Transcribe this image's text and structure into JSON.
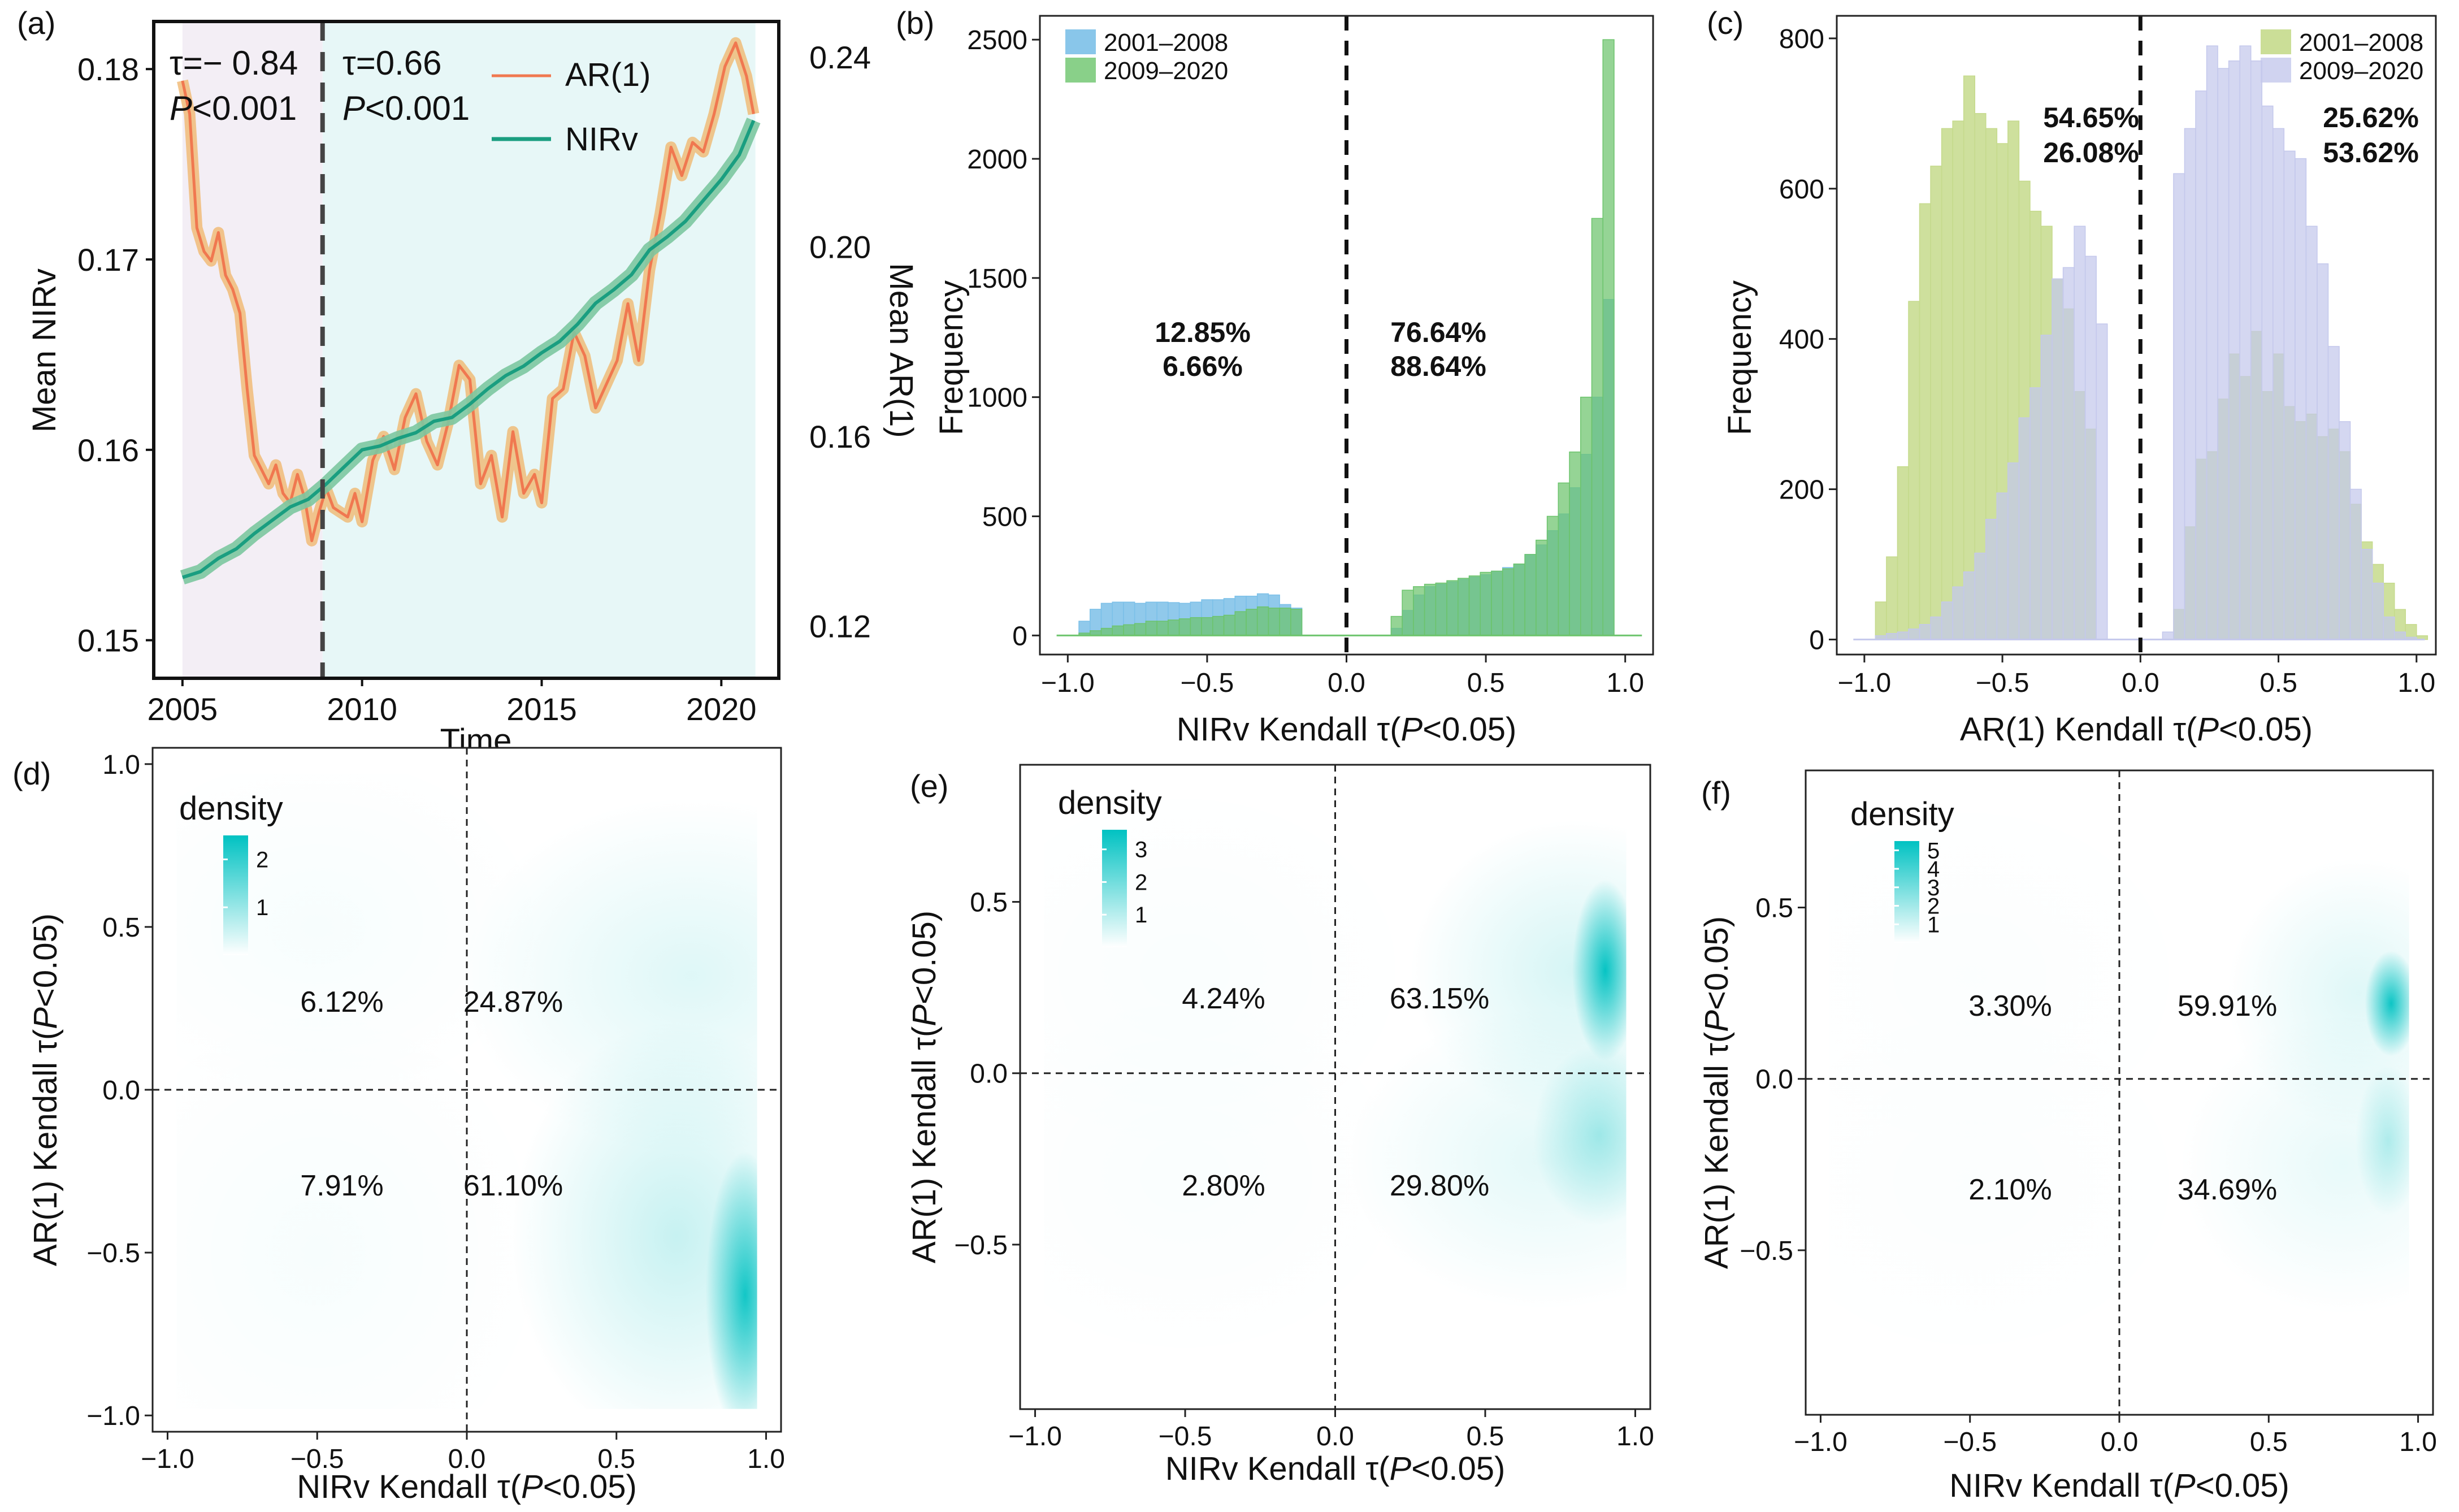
{
  "figure": {
    "colors": {
      "nirv": "#1a9e80",
      "nirv_band": "#7cc7a0",
      "ar1": "#f07850",
      "ar1_band": "#f0b870",
      "shade_early": "#f3eef5",
      "shade_late": "#e7f7f7",
      "blue": "#7cc0e8",
      "green": "#6cc46c",
      "lime": "#c5da8c",
      "lavender": "#c4c8ec",
      "teal": "#00c2c2",
      "pct_blue": "#7cc0e8",
      "pct_green": "#7ec470",
      "pct_lime": "#bdd889",
      "pct_lav": "#c4c8ec"
    }
  },
  "chart_data": [
    {
      "id": "a",
      "panel_label": "(a)",
      "type": "line",
      "xlabel": "Time",
      "ylabel_left": "Mean NIRv",
      "ylabel_right": "Mean AR(1)",
      "xlim": [
        2004.2,
        2021.6
      ],
      "ylim_left": [
        0.148,
        0.1825
      ],
      "ylim_right": [
        0.109,
        0.2475
      ],
      "x_ticks": [
        2005,
        2010,
        2015,
        2020
      ],
      "x_tick_labels": [
        "2005",
        "2010",
        "2015",
        "2020"
      ],
      "y_left_ticks": [
        0.15,
        0.16,
        0.17,
        0.18
      ],
      "y_left_tick_labels": [
        "0.15",
        "0.16",
        "0.17",
        "0.18"
      ],
      "y_right_ticks": [
        0.12,
        0.16,
        0.2,
        0.24
      ],
      "y_right_tick_labels": [
        "0.12",
        "0.16",
        "0.20",
        "0.24"
      ],
      "breakpoint": 2008.9,
      "shade_ranges": [
        [
          2005,
          2008.9
        ],
        [
          2008.9,
          2020.95
        ]
      ],
      "annotations": [
        {
          "tau": "τ=− 0.84",
          "p_italic": "P",
          "p_rest": "<0.001"
        },
        {
          "tau": "τ=0.66",
          "p_italic": "P",
          "p_rest": "<0.001"
        }
      ],
      "legend": [
        {
          "name": "AR(1)"
        },
        {
          "name": "NIRv"
        }
      ],
      "series": [
        {
          "name": "NIRv",
          "axis": "left",
          "x": [
            2005.0,
            2005.5,
            2006.0,
            2006.5,
            2007.0,
            2007.5,
            2008.0,
            2008.5,
            2009.0,
            2009.5,
            2010.0,
            2010.5,
            2011.0,
            2011.5,
            2012.0,
            2012.5,
            2013.0,
            2013.5,
            2014.0,
            2014.5,
            2015.0,
            2015.5,
            2016.0,
            2016.5,
            2017.0,
            2017.5,
            2018.0,
            2018.5,
            2019.0,
            2019.5,
            2020.0,
            2020.5,
            2020.9
          ],
          "y": [
            0.1533,
            0.1536,
            0.1543,
            0.1548,
            0.1556,
            0.1563,
            0.157,
            0.1574,
            0.1582,
            0.1591,
            0.16,
            0.1602,
            0.1606,
            0.1609,
            0.1615,
            0.1617,
            0.1624,
            0.1632,
            0.1639,
            0.1644,
            0.1651,
            0.1657,
            0.1666,
            0.1677,
            0.1684,
            0.1692,
            0.1705,
            0.1712,
            0.172,
            0.1731,
            0.1742,
            0.1755,
            0.1773
          ]
        },
        {
          "name": "AR(1)",
          "axis": "right",
          "x": [
            2005.0,
            2005.2,
            2005.4,
            2005.6,
            2005.8,
            2006.0,
            2006.2,
            2006.4,
            2006.6,
            2006.8,
            2007.0,
            2007.2,
            2007.4,
            2007.6,
            2007.8,
            2008.0,
            2008.2,
            2008.4,
            2008.6,
            2008.8,
            2009.0,
            2009.2,
            2009.4,
            2009.6,
            2009.8,
            2010.0,
            2010.3,
            2010.6,
            2010.9,
            2011.2,
            2011.5,
            2011.8,
            2012.1,
            2012.4,
            2012.7,
            2013.0,
            2013.3,
            2013.6,
            2013.9,
            2014.2,
            2014.5,
            2014.8,
            2015.0,
            2015.3,
            2015.6,
            2015.9,
            2016.2,
            2016.5,
            2016.8,
            2017.1,
            2017.4,
            2017.7,
            2018.0,
            2018.3,
            2018.6,
            2018.9,
            2019.2,
            2019.5,
            2019.8,
            2020.1,
            2020.4,
            2020.7,
            2020.9
          ],
          "y": [
            0.235,
            0.228,
            0.204,
            0.199,
            0.197,
            0.203,
            0.194,
            0.191,
            0.186,
            0.17,
            0.156,
            0.153,
            0.15,
            0.154,
            0.148,
            0.146,
            0.152,
            0.147,
            0.138,
            0.144,
            0.149,
            0.145,
            0.144,
            0.143,
            0.148,
            0.142,
            0.155,
            0.16,
            0.153,
            0.164,
            0.169,
            0.159,
            0.154,
            0.163,
            0.175,
            0.172,
            0.15,
            0.156,
            0.143,
            0.161,
            0.148,
            0.152,
            0.146,
            0.168,
            0.17,
            0.182,
            0.177,
            0.166,
            0.171,
            0.176,
            0.188,
            0.176,
            0.195,
            0.207,
            0.221,
            0.215,
            0.222,
            0.22,
            0.228,
            0.238,
            0.243,
            0.236,
            0.228
          ]
        }
      ]
    },
    {
      "id": "b",
      "panel_label": "(b)",
      "type": "bar",
      "subtype": "histogram",
      "xlabel_prefix": "NIRv Kendall τ(",
      "xlabel_italic": "P",
      "xlabel_suffix": "<0.05)",
      "ylabel": "Frequency",
      "xlim": [
        -1.1,
        1.1
      ],
      "ylim": [
        -80,
        2600
      ],
      "x_ticks": [
        -1.0,
        -0.5,
        0.0,
        0.5,
        1.0
      ],
      "x_tick_labels": [
        "−1.0",
        "−0.5",
        "0.0",
        "0.5",
        "1.0"
      ],
      "y_ticks": [
        0,
        500,
        1000,
        1500,
        2000,
        2500
      ],
      "y_tick_labels": [
        "0",
        "500",
        "1000",
        "1500",
        "2000",
        "2500"
      ],
      "bin_start": -1.0,
      "bin_width": 0.04,
      "legend": [
        "2001–2008",
        "2009–2020"
      ],
      "pct_left": [
        "12.85%",
        "6.66%"
      ],
      "pct_right": [
        "76.64%",
        "88.64%"
      ],
      "series": [
        {
          "name": "2001–2008",
          "values": [
            0,
            60,
            110,
            135,
            140,
            140,
            135,
            140,
            140,
            138,
            135,
            140,
            150,
            150,
            155,
            165,
            165,
            175,
            170,
            130,
            115,
            0,
            0,
            0,
            0,
            0,
            0,
            0,
            0,
            30,
            105,
            170,
            205,
            215,
            225,
            235,
            245,
            255,
            270,
            285,
            300,
            340,
            380,
            440,
            510,
            620,
            760,
            1000,
            1410,
            0
          ]
        },
        {
          "name": "2009–2020",
          "values": [
            0,
            10,
            20,
            30,
            40,
            45,
            50,
            60,
            60,
            65,
            70,
            75,
            75,
            80,
            85,
            100,
            110,
            120,
            115,
            115,
            110,
            0,
            0,
            0,
            0,
            0,
            0,
            0,
            0,
            80,
            190,
            205,
            215,
            220,
            230,
            240,
            250,
            265,
            270,
            280,
            300,
            340,
            400,
            500,
            640,
            770,
            1000,
            1750,
            2500,
            0
          ]
        }
      ]
    },
    {
      "id": "c",
      "panel_label": "(c)",
      "type": "bar",
      "subtype": "histogram",
      "xlabel_prefix": "AR(1) Kendall τ(",
      "xlabel_italic": "P",
      "xlabel_suffix": "<0.05)",
      "ylabel": "Frequency",
      "xlim": [
        -1.1,
        1.07
      ],
      "ylim": [
        -20,
        830
      ],
      "x_ticks": [
        -1.0,
        -0.5,
        0.0,
        0.5,
        1.0
      ],
      "x_tick_labels": [
        "−1.0",
        "−0.5",
        "0.0",
        "0.5",
        "1.0"
      ],
      "y_ticks": [
        0,
        200,
        400,
        600,
        800
      ],
      "y_tick_labels": [
        "0",
        "200",
        "400",
        "600",
        "800"
      ],
      "bin_start": -0.96,
      "bin_width": 0.04,
      "legend": [
        "2001–2008",
        "2009–2020"
      ],
      "pct_left": [
        "54.65%",
        "26.08%"
      ],
      "pct_right": [
        "25.62%",
        "53.62%"
      ],
      "series": [
        {
          "name": "2001–2008",
          "values": [
            50,
            110,
            230,
            450,
            580,
            630,
            680,
            690,
            750,
            700,
            680,
            660,
            690,
            610,
            570,
            550,
            480,
            440,
            330,
            280,
            0,
            0,
            0,
            0,
            0,
            0,
            0,
            40,
            150,
            240,
            250,
            320,
            380,
            350,
            410,
            330,
            380,
            310,
            290,
            300,
            270,
            280,
            250,
            180,
            130,
            100,
            75,
            40,
            20,
            5
          ]
        },
        {
          "name": "2009–2020",
          "values": [
            5,
            8,
            10,
            14,
            20,
            30,
            50,
            70,
            90,
            115,
            160,
            195,
            235,
            295,
            335,
            405,
            480,
            495,
            550,
            510,
            420,
            0,
            0,
            0,
            0,
            0,
            10,
            620,
            680,
            730,
            790,
            760,
            770,
            790,
            770,
            710,
            680,
            650,
            640,
            550,
            500,
            390,
            290,
            200,
            120,
            75,
            30,
            10,
            3,
            0
          ]
        }
      ]
    },
    {
      "id": "d",
      "panel_label": "(d)",
      "type": "heatmap",
      "subtype": "2D density",
      "xlabel_prefix": "NIRv Kendall τ(",
      "xlabel_italic": "P",
      "xlabel_suffix": "<0.05)",
      "ylabel_prefix": "AR(1) Kendall τ(",
      "ylabel_italic": "P",
      "ylabel_suffix": "<0.05)",
      "xlim": [
        -1.05,
        1.05
      ],
      "ylim": [
        -1.05,
        1.05
      ],
      "x_ticks": [
        -1.0,
        -0.5,
        0.0,
        0.5,
        1.0
      ],
      "x_tick_labels": [
        "−1.0",
        "−0.5",
        "0.0",
        "0.5",
        "1.0"
      ],
      "y_ticks": [
        -1.0,
        -0.5,
        0.0,
        0.5,
        1.0
      ],
      "y_tick_labels": [
        "−1.0",
        "−0.5",
        "0.0",
        "0.5",
        "1.0"
      ],
      "legend_title": "density",
      "legend_max": 2.5,
      "legend_ticks": [
        2,
        1
      ],
      "quadrant_labels": [
        "6.12%",
        "24.87%",
        "7.91%",
        "61.10%"
      ],
      "hotspots": [
        [
          0.93,
          -0.63,
          0.06,
          0.2,
          2.3
        ],
        [
          0.7,
          -0.45,
          0.25,
          0.3,
          0.55
        ],
        [
          0.75,
          0.35,
          0.35,
          0.25,
          0.32
        ],
        [
          -0.5,
          0.5,
          0.35,
          0.25,
          0.08
        ],
        [
          -0.5,
          -0.5,
          0.35,
          0.35,
          0.08
        ]
      ]
    },
    {
      "id": "e",
      "panel_label": "(e)",
      "type": "heatmap",
      "subtype": "2D density",
      "xlabel_prefix": "NIRv Kendall τ(",
      "xlabel_italic": "P",
      "xlabel_suffix": "<0.05)",
      "ylabel_prefix": "AR(1) Kendall τ(",
      "ylabel_italic": "P",
      "ylabel_suffix": "<0.05)",
      "xlim": [
        -1.05,
        1.05
      ],
      "ylim": [
        -0.98,
        0.9
      ],
      "x_ticks": [
        -1.0,
        -0.5,
        0.0,
        0.5,
        1.0
      ],
      "x_tick_labels": [
        "−1.0",
        "−0.5",
        "0.0",
        "0.5",
        "1.0"
      ],
      "y_ticks": [
        -0.5,
        0.0,
        0.5
      ],
      "y_tick_labels": [
        "−0.5",
        "0.0",
        "0.5"
      ],
      "legend_title": "density",
      "legend_max": 3.6,
      "legend_ticks": [
        3,
        2,
        1
      ],
      "quadrant_labels": [
        "4.24%",
        "63.15%",
        "2.80%",
        "29.80%"
      ],
      "hotspots": [
        [
          0.9,
          0.3,
          0.05,
          0.12,
          3.5
        ],
        [
          0.8,
          0.3,
          0.25,
          0.2,
          0.6
        ],
        [
          0.88,
          -0.18,
          0.1,
          0.12,
          1.2
        ],
        [
          0.7,
          -0.25,
          0.3,
          0.2,
          0.4
        ],
        [
          -0.5,
          0.3,
          0.35,
          0.25,
          0.08
        ],
        [
          -0.5,
          -0.3,
          0.35,
          0.25,
          0.08
        ]
      ]
    },
    {
      "id": "f",
      "panel_label": "(f)",
      "type": "heatmap",
      "subtype": "2D density",
      "xlabel_prefix": "NIRv Kendall τ(",
      "xlabel_italic": "P",
      "xlabel_suffix": "<0.05)",
      "ylabel_prefix": "AR(1) Kendall τ(",
      "ylabel_italic": "P",
      "ylabel_suffix": "<0.05)",
      "xlim": [
        -1.05,
        1.05
      ],
      "ylim": [
        -0.98,
        0.9
      ],
      "x_ticks": [
        -1.0,
        -0.5,
        0.0,
        0.5,
        1.0
      ],
      "x_tick_labels": [
        "−1.0",
        "−0.5",
        "0.0",
        "0.5",
        "1.0"
      ],
      "y_ticks": [
        -0.5,
        0.0,
        0.5
      ],
      "y_tick_labels": [
        "−0.5",
        "0.0",
        "0.5"
      ],
      "legend_title": "density",
      "legend_max": 5.5,
      "legend_ticks": [
        5,
        4,
        3,
        2,
        1
      ],
      "quadrant_labels": [
        "3.30%",
        "59.91%",
        "2.10%",
        "34.69%"
      ],
      "hotspots": [
        [
          0.91,
          0.22,
          0.04,
          0.07,
          5.2
        ],
        [
          0.8,
          0.25,
          0.2,
          0.18,
          0.7
        ],
        [
          0.9,
          -0.18,
          0.05,
          0.1,
          1.5
        ],
        [
          0.75,
          -0.25,
          0.25,
          0.2,
          0.5
        ],
        [
          -0.5,
          0.3,
          0.35,
          0.25,
          0.08
        ],
        [
          -0.5,
          -0.3,
          0.35,
          0.25,
          0.08
        ]
      ]
    }
  ]
}
